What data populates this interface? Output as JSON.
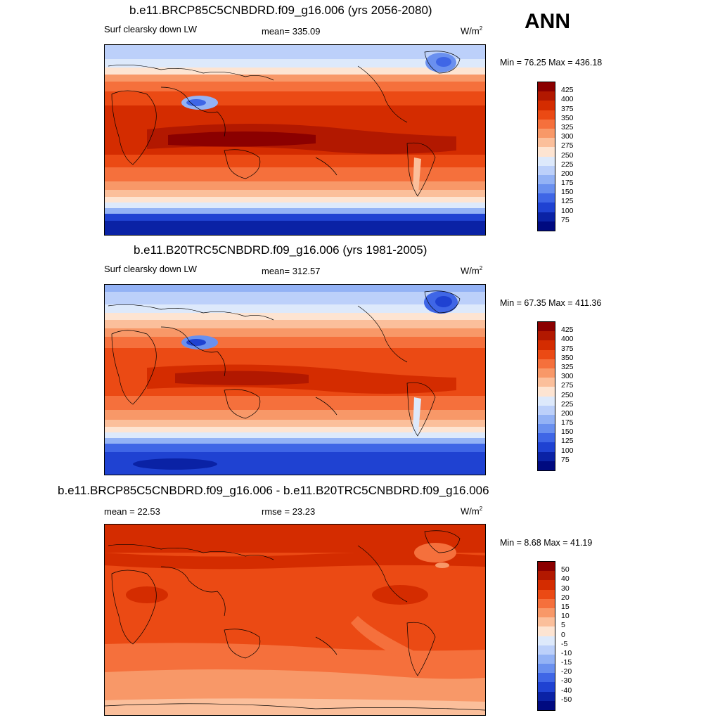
{
  "season": "ANN",
  "panels": [
    {
      "title": "b.e11.BRCP85C5CNBDRD.f09_g16.006 (yrs 2056-2080)",
      "left": "Surf clearsky down LW",
      "center": "mean= 335.09",
      "units_base": "W/m",
      "units_exp": "2",
      "minmax": "Min =  76.25 Max = 436.18",
      "colorbar_labels": [
        "425",
        "400",
        "375",
        "350",
        "325",
        "300",
        "275",
        "250",
        "225",
        "200",
        "175",
        "150",
        "125",
        "100",
        "75"
      ],
      "colorbar_colors": [
        "#8b0000",
        "#b21800",
        "#d42c00",
        "#eb4a14",
        "#f5703c",
        "#f89868",
        "#fbbf9b",
        "#fde4d2",
        "#dde9fb",
        "#bcd0fa",
        "#93b2f5",
        "#6a90ef",
        "#3f66e6",
        "#1f42d2",
        "#0a22a5",
        "#000a80"
      ]
    },
    {
      "title": "b.e11.B20TRC5CNBDRD.f09_g16.006 (yrs 1981-2005)",
      "left": "Surf clearsky down LW",
      "center": "mean= 312.57",
      "units_base": "W/m",
      "units_exp": "2",
      "minmax": "Min =  67.35 Max = 411.36",
      "colorbar_labels": [
        "425",
        "400",
        "375",
        "350",
        "325",
        "300",
        "275",
        "250",
        "225",
        "200",
        "175",
        "150",
        "125",
        "100",
        "75"
      ],
      "colorbar_colors": [
        "#8b0000",
        "#b21800",
        "#d42c00",
        "#eb4a14",
        "#f5703c",
        "#f89868",
        "#fbbf9b",
        "#fde4d2",
        "#dde9fb",
        "#bcd0fa",
        "#93b2f5",
        "#6a90ef",
        "#3f66e6",
        "#1f42d2",
        "#0a22a5",
        "#000a80"
      ]
    },
    {
      "title": "b.e11.BRCP85C5CNBDRD.f09_g16.006 - b.e11.B20TRC5CNBDRD.f09_g16.006",
      "left": "mean =  22.53",
      "center": "rmse =  23.23",
      "units_base": "W/m",
      "units_exp": "2",
      "minmax": "Min =   8.68 Max =  41.19",
      "colorbar_labels": [
        "50",
        "40",
        "30",
        "20",
        "15",
        "10",
        "5",
        "0",
        "-5",
        "-10",
        "-15",
        "-20",
        "-30",
        "-40",
        "-50"
      ],
      "colorbar_colors": [
        "#8b0000",
        "#b21800",
        "#d42c00",
        "#eb4a14",
        "#f5703c",
        "#f89868",
        "#fbbf9b",
        "#fde4d2",
        "#dde9fb",
        "#bcd0fa",
        "#93b2f5",
        "#6a90ef",
        "#3f66e6",
        "#1f42d2",
        "#0a22a5",
        "#000a80"
      ]
    }
  ]
}
